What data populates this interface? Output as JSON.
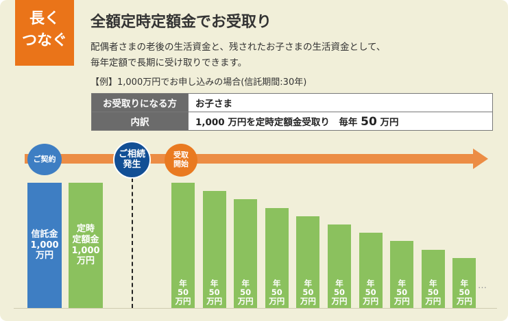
{
  "badge": {
    "line1": "長く",
    "line2": "つなぐ"
  },
  "title": "全額定時定額金でお受取り",
  "description": {
    "line1": "配偶者さまの老後の生活資金と、残されたお子さまの生活資金として、",
    "line2": "毎年定額で長期に受け取りできます。"
  },
  "example": "【例】1,000万円でお申し込みの場合(信託期間:30年)",
  "info": {
    "recipient_label": "お受取りになる方",
    "recipient_value": "お子さま",
    "detail_label": "内訳",
    "detail_prefix": "1,000 万円を定時定額金受取り　毎年 ",
    "detail_amount": "50",
    "detail_suffix": " 万円"
  },
  "timeline": {
    "contract": "ご契約",
    "inheritance": "ご相続\n発生",
    "start": "受取\n開始"
  },
  "bars": {
    "trust": "信託金\n1,000\n万円",
    "fixed": "定時\n定額金\n1,000\n万円"
  },
  "payout_label": "年\n50\n万円",
  "payout_count": 10,
  "ellipsis": "…",
  "colors": {
    "orange": "#ea7419",
    "blue": "#3e7ec3",
    "navy": "#124f95",
    "green": "#8bc15e"
  }
}
